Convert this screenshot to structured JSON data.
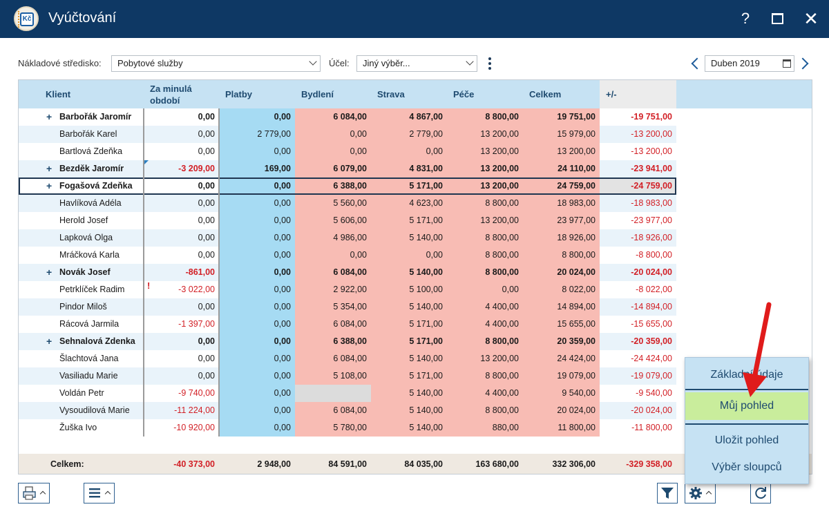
{
  "window": {
    "title": "Vyúčtování",
    "icon": "kc-ledger-icon",
    "help": "?",
    "close": "✕"
  },
  "filters": {
    "cost_center_label": "Nákladové středisko:",
    "cost_center_value": "Pobytové služby",
    "purpose_label": "Účel:",
    "purpose_value": "Jiný výběr...",
    "period_value": "Duben 2019"
  },
  "columns": [
    "Klient",
    "Za minulá období",
    "Platby",
    "Bydlení",
    "Strava",
    "Péče",
    "Celkem",
    "+/-"
  ],
  "columns_line1": "Za minulá",
  "columns_line2": "období",
  "rows": [
    {
      "name": "Barbořák Jaromír",
      "group": true,
      "prev": "0,00",
      "pay": "0,00",
      "housing": "6 084,00",
      "food": "4 867,00",
      "care": "8 800,00",
      "total": "19 751,00",
      "diff": "-19 751,00"
    },
    {
      "name": "Barbořák Karel",
      "group": false,
      "prev": "0,00",
      "pay": "2 779,00",
      "housing": "0,00",
      "food": "2 779,00",
      "care": "13 200,00",
      "total": "15 979,00",
      "diff": "-13 200,00"
    },
    {
      "name": "Bartlová Zdeňka",
      "group": false,
      "prev": "0,00",
      "pay": "0,00",
      "housing": "0,00",
      "food": "0,00",
      "care": "13 200,00",
      "total": "13 200,00",
      "diff": "-13 200,00"
    },
    {
      "name": "Bezděk Jaromír",
      "group": true,
      "prev": "-3 209,00",
      "pay": "169,00",
      "housing": "6 079,00",
      "food": "4 831,00",
      "care": "13 200,00",
      "total": "24 110,00",
      "diff": "-23 941,00"
    },
    {
      "name": "Fogašová Zdeňka",
      "group": true,
      "prev": "0,00",
      "pay": "0,00",
      "housing": "6 388,00",
      "food": "5 171,00",
      "care": "13 200,00",
      "total": "24 759,00",
      "diff": "-24 759,00",
      "selected": true
    },
    {
      "name": "Havlíková Adéla",
      "group": false,
      "prev": "0,00",
      "pay": "0,00",
      "housing": "5 560,00",
      "food": "4 623,00",
      "care": "8 800,00",
      "total": "18 983,00",
      "diff": "-18 983,00"
    },
    {
      "name": "Herold Josef",
      "group": false,
      "prev": "0,00",
      "pay": "0,00",
      "housing": "5 606,00",
      "food": "5 171,00",
      "care": "13 200,00",
      "total": "23 977,00",
      "diff": "-23 977,00"
    },
    {
      "name": "Lapková Olga",
      "group": false,
      "prev": "0,00",
      "pay": "0,00",
      "housing": "4 986,00",
      "food": "5 140,00",
      "care": "8 800,00",
      "total": "18 926,00",
      "diff": "-18 926,00"
    },
    {
      "name": "Mráčková Karla",
      "group": false,
      "prev": "0,00",
      "pay": "0,00",
      "housing": "0,00",
      "food": "0,00",
      "care": "8 800,00",
      "total": "8 800,00",
      "diff": "-8 800,00"
    },
    {
      "name": "Novák Josef",
      "group": true,
      "prev": "-861,00",
      "pay": "0,00",
      "housing": "6 084,00",
      "food": "5 140,00",
      "care": "8 800,00",
      "total": "20 024,00",
      "diff": "-20 024,00"
    },
    {
      "name": "Petrklíček Radim",
      "group": false,
      "prev": "-3 022,00",
      "pay": "0,00",
      "housing": "2 922,00",
      "food": "5 100,00",
      "care": "0,00",
      "total": "8 022,00",
      "diff": "-8 022,00",
      "flag": true
    },
    {
      "name": "Pindor Miloš",
      "group": false,
      "prev": "0,00",
      "pay": "0,00",
      "housing": "5 354,00",
      "food": "5 140,00",
      "care": "4 400,00",
      "total": "14 894,00",
      "diff": "-14 894,00"
    },
    {
      "name": "Rácová Jarmila",
      "group": false,
      "prev": "-1 397,00",
      "pay": "0,00",
      "housing": "6 084,00",
      "food": "5 171,00",
      "care": "4 400,00",
      "total": "15 655,00",
      "diff": "-15 655,00"
    },
    {
      "name": "Sehnalová Zdenka",
      "group": true,
      "prev": "0,00",
      "pay": "0,00",
      "housing": "6 388,00",
      "food": "5 171,00",
      "care": "8 800,00",
      "total": "20 359,00",
      "diff": "-20 359,00"
    },
    {
      "name": "Šlachtová Jana",
      "group": false,
      "prev": "0,00",
      "pay": "0,00",
      "housing": "6 084,00",
      "food": "5 140,00",
      "care": "13 200,00",
      "total": "24 424,00",
      "diff": "-24 424,00"
    },
    {
      "name": "Vasiliadu Marie",
      "group": false,
      "prev": "0,00",
      "pay": "0,00",
      "housing": "5 108,00",
      "food": "5 171,00",
      "care": "8 800,00",
      "total": "19 079,00",
      "diff": "-19 079,00"
    },
    {
      "name": "Voldán Petr",
      "group": false,
      "prev": "-9 740,00",
      "pay": "0,00",
      "housing": "",
      "food": "5 140,00",
      "care": "4 400,00",
      "total": "9 540,00",
      "diff": "-9 540,00"
    },
    {
      "name": "Vysoudilová Marie",
      "group": false,
      "prev": "-11 224,00",
      "pay": "0,00",
      "housing": "6 084,00",
      "food": "5 140,00",
      "care": "8 800,00",
      "total": "20 024,00",
      "diff": "-20 024,00"
    },
    {
      "name": "Žuška Ivo",
      "group": false,
      "prev": "-10 920,00",
      "pay": "0,00",
      "housing": "5 780,00",
      "food": "5 140,00",
      "care": "880,00",
      "total": "11 800,00",
      "diff": "-11 800,00"
    }
  ],
  "totals": {
    "label": "Celkem:",
    "prev": "-40 373,00",
    "pay": "2 948,00",
    "housing": "84 591,00",
    "food": "84 035,00",
    "care": "163 680,00",
    "total": "332 306,00",
    "diff": "-329 358,00"
  },
  "menu": {
    "items": [
      "Základní údaje",
      "Můj pohled",
      "Uložit pohled",
      "Výběr sloupců"
    ],
    "active": "Můj pohled"
  },
  "colors": {
    "titlebar": "#0e3864",
    "header": "#c6e2f3",
    "payments": "#a6dbf3",
    "costs": "#f8bcb4",
    "negative": "#d21f25",
    "menu_active": "#c9ed9c",
    "arrow": "#e01b1b"
  },
  "toolbar": {
    "print": "printer-icon",
    "list": "list-icon",
    "filter": "filter-icon",
    "settings": "gear-icon",
    "refresh": "refresh-icon"
  }
}
